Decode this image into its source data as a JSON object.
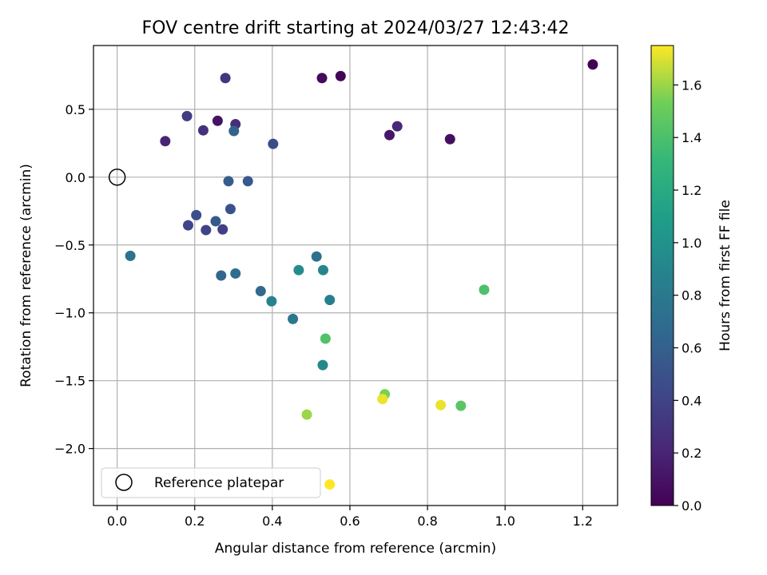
{
  "chart_data": {
    "type": "scatter",
    "title": "FOV centre drift starting at 2024/03/27 12:43:42",
    "xlabel": "Angular distance from reference (arcmin)",
    "ylabel": "Rotation from reference (arcmin)",
    "xlim": [
      -0.061,
      1.29
    ],
    "ylim": [
      -2.42,
      0.97
    ],
    "x_ticks": [
      0.0,
      0.2,
      0.4,
      0.6,
      0.8,
      1.0,
      1.2
    ],
    "y_ticks": [
      0.5,
      0.0,
      -0.5,
      -1.0,
      -1.5,
      -2.0
    ],
    "x_tick_labels": [
      "0.0",
      "0.2",
      "0.4",
      "0.6",
      "0.8",
      "1.0",
      "1.2"
    ],
    "y_tick_labels": [
      "0.5",
      "0.0",
      "−0.5",
      "−1.0",
      "−1.5",
      "−2.0"
    ],
    "grid": true,
    "legend": {
      "position": "lower-left",
      "entries": [
        "Reference platepar"
      ]
    },
    "reference_point": {
      "x": 0.0,
      "y": 0.0,
      "label": "Reference platepar"
    },
    "colorbar": {
      "label": "Hours from first FF file",
      "colormap": "viridis",
      "range": [
        0.0,
        1.75
      ],
      "ticks": [
        0.0,
        0.2,
        0.4,
        0.6,
        0.8,
        1.0,
        1.2,
        1.4,
        1.6
      ],
      "tick_labels": [
        "0.0",
        "0.2",
        "0.4",
        "0.6",
        "0.8",
        "1.0",
        "1.2",
        "1.4",
        "1.6"
      ]
    },
    "points": [
      {
        "x": 1.226,
        "y": 0.83,
        "c": 0.0
      },
      {
        "x": 0.576,
        "y": 0.745,
        "c": 0.02
      },
      {
        "x": 0.528,
        "y": 0.73,
        "c": 0.05
      },
      {
        "x": 0.858,
        "y": 0.28,
        "c": 0.08
      },
      {
        "x": 0.702,
        "y": 0.31,
        "c": 0.12
      },
      {
        "x": 0.722,
        "y": 0.375,
        "c": 0.22
      },
      {
        "x": 0.259,
        "y": 0.415,
        "c": 0.1
      },
      {
        "x": 0.305,
        "y": 0.39,
        "c": 0.25
      },
      {
        "x": 0.124,
        "y": 0.265,
        "c": 0.2
      },
      {
        "x": 0.222,
        "y": 0.345,
        "c": 0.28
      },
      {
        "x": 0.279,
        "y": 0.73,
        "c": 0.3
      },
      {
        "x": 0.18,
        "y": 0.45,
        "c": 0.35
      },
      {
        "x": 0.402,
        "y": 0.245,
        "c": 0.45
      },
      {
        "x": 0.301,
        "y": 0.34,
        "c": 0.62
      },
      {
        "x": 0.287,
        "y": -0.03,
        "c": 0.58
      },
      {
        "x": 0.337,
        "y": -0.03,
        "c": 0.55
      },
      {
        "x": 0.292,
        "y": -0.235,
        "c": 0.5
      },
      {
        "x": 0.204,
        "y": -0.28,
        "c": 0.48
      },
      {
        "x": 0.254,
        "y": -0.325,
        "c": 0.55
      },
      {
        "x": 0.183,
        "y": -0.355,
        "c": 0.42
      },
      {
        "x": 0.229,
        "y": -0.39,
        "c": 0.4
      },
      {
        "x": 0.272,
        "y": -0.385,
        "c": 0.38
      },
      {
        "x": 0.034,
        "y": -0.58,
        "c": 0.75
      },
      {
        "x": 0.268,
        "y": -0.725,
        "c": 0.65
      },
      {
        "x": 0.305,
        "y": -0.71,
        "c": 0.7
      },
      {
        "x": 0.37,
        "y": -0.84,
        "c": 0.68
      },
      {
        "x": 0.514,
        "y": -0.585,
        "c": 0.72
      },
      {
        "x": 0.468,
        "y": -0.685,
        "c": 0.95
      },
      {
        "x": 0.531,
        "y": -0.685,
        "c": 0.9
      },
      {
        "x": 0.398,
        "y": -0.915,
        "c": 0.88
      },
      {
        "x": 0.548,
        "y": -0.905,
        "c": 0.85
      },
      {
        "x": 0.453,
        "y": -1.045,
        "c": 0.78
      },
      {
        "x": 0.53,
        "y": -1.385,
        "c": 0.92
      },
      {
        "x": 0.537,
        "y": -1.19,
        "c": 1.42
      },
      {
        "x": 0.946,
        "y": -0.83,
        "c": 1.4
      },
      {
        "x": 0.69,
        "y": -1.6,
        "c": 1.55
      },
      {
        "x": 0.684,
        "y": -1.635,
        "c": 1.72
      },
      {
        "x": 0.886,
        "y": -1.685,
        "c": 1.45
      },
      {
        "x": 0.834,
        "y": -1.68,
        "c": 1.72
      },
      {
        "x": 0.489,
        "y": -1.75,
        "c": 1.6
      },
      {
        "x": 0.548,
        "y": -2.265,
        "c": 1.75
      }
    ]
  }
}
